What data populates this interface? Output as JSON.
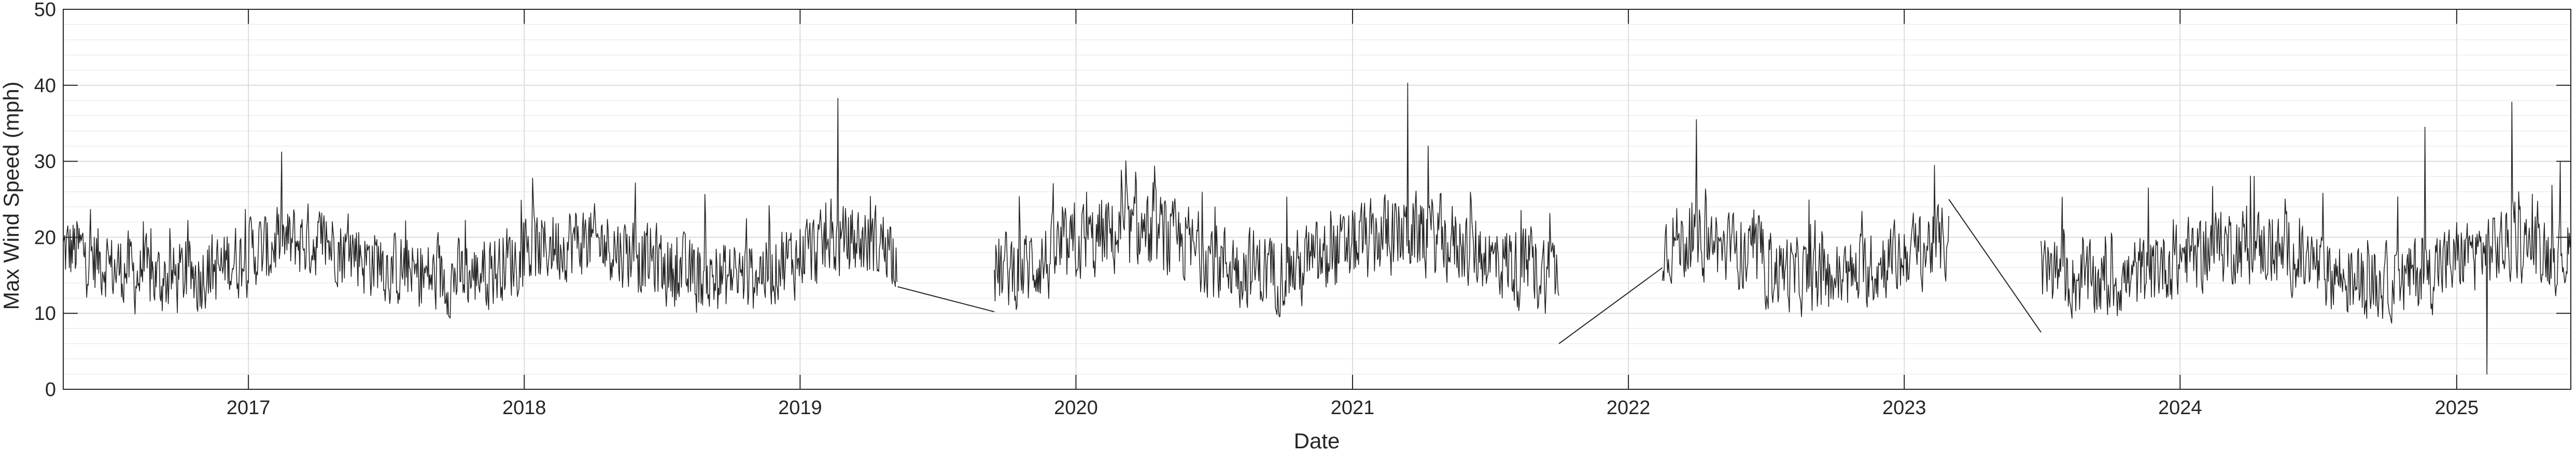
{
  "chart_data": {
    "type": "line",
    "title": "",
    "xlabel": "Date",
    "ylabel": "Max Wind Speed (mph)",
    "x_range": [
      "2016-05-01",
      "2025-06-01"
    ],
    "ylim": [
      0,
      50
    ],
    "y_ticks": [
      0,
      10,
      20,
      30,
      40,
      50
    ],
    "x_ticks": [
      "2017",
      "2018",
      "2019",
      "2020",
      "2021",
      "2022",
      "2023",
      "2024",
      "2025"
    ],
    "grid": true,
    "minor_grid": true,
    "line_color": "#262626",
    "series": [
      {
        "name": "",
        "segments": [
          {
            "start": "2016-05-01",
            "end": "2019-05-10",
            "mean": 17,
            "amp": 6,
            "min": 5,
            "max": 38
          },
          {
            "start": "2019-09-15",
            "end": "2021-10-01",
            "mean": 18,
            "amp": 6.5,
            "min": 6,
            "max": 40
          },
          {
            "start": "2022-02-15",
            "end": "2023-03-01",
            "mean": 17,
            "amp": 6,
            "min": 5.5,
            "max": 35
          },
          {
            "start": "2023-07-01",
            "end": "2025-06-01",
            "mean": 16.5,
            "amp": 6,
            "min": 2,
            "max": 38
          }
        ],
        "gap_connectors": [
          {
            "x": [
              "2019-05-10",
              "2019-09-15"
            ],
            "y": [
              13.5,
              10.2
            ]
          },
          {
            "x": [
              "2021-10-01",
              "2022-02-15"
            ],
            "y": [
              6.0,
              16.0
            ]
          },
          {
            "x": [
              "2023-03-01",
              "2023-07-01"
            ],
            "y": [
              25.0,
              7.5
            ]
          }
        ],
        "peaks": [
          {
            "x": "2019-02-20",
            "y": 38.3
          },
          {
            "x": "2021-03-15",
            "y": 40.3
          },
          {
            "x": "2022-04-01",
            "y": 35.5
          },
          {
            "x": "2025-03-15",
            "y": 37.8
          },
          {
            "x": "2024-11-20",
            "y": 34.5
          },
          {
            "x": "2025-02-10",
            "y": 2.0
          }
        ]
      }
    ]
  }
}
